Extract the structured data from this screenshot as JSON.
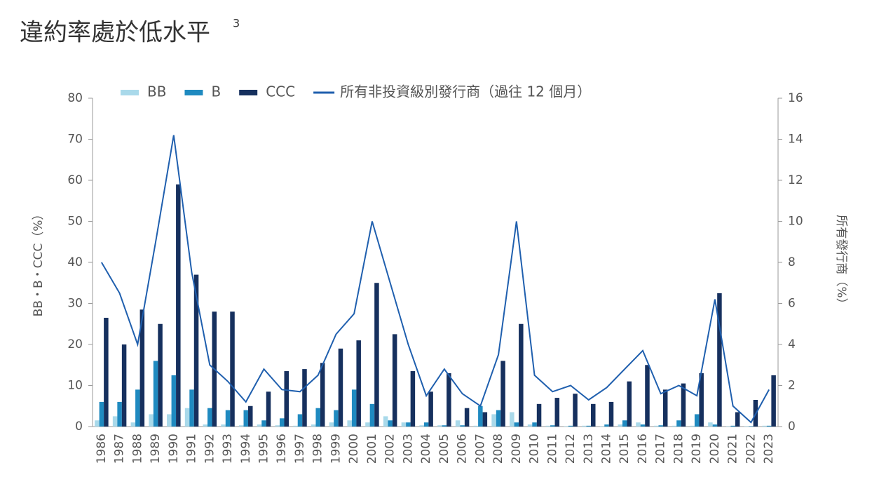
{
  "chart_data": {
    "type": "bar_line",
    "title": "違約率處於低水平",
    "title_superscript": "3",
    "y_label": "BB・B・CCC（%）",
    "y2_label": "所有發行商（%）",
    "categories": [
      "1986",
      "1987",
      "1988",
      "1989",
      "1990",
      "1991",
      "1992",
      "1993",
      "1994",
      "1995",
      "1996",
      "1997",
      "1998",
      "1999",
      "2000",
      "2001",
      "2002",
      "2003",
      "2004",
      "2005",
      "2006",
      "2007",
      "2008",
      "2009",
      "2010",
      "2011",
      "2012",
      "2013",
      "2014",
      "2015",
      "2016",
      "2017",
      "2018",
      "2019",
      "2020",
      "2021",
      "2022",
      "2023"
    ],
    "series": [
      {
        "name": "BB",
        "type": "bar",
        "color": "#a9d9ea",
        "values": [
          1.5,
          2.5,
          1,
          3,
          3,
          4.5,
          0.5,
          0.5,
          0.3,
          0.5,
          0.3,
          0.2,
          0.5,
          1,
          1.5,
          1,
          2.5,
          1,
          0.3,
          0.3,
          1.5,
          0.2,
          3,
          3.5,
          0.5,
          0.2,
          0.1,
          0.2,
          0.1,
          0.5,
          1,
          0.2,
          0.2,
          0.2,
          1,
          0.1,
          0.1,
          0.2
        ]
      },
      {
        "name": "B",
        "type": "bar",
        "color": "#1f8ac0",
        "values": [
          6,
          6,
          9,
          16,
          12.5,
          9,
          4.5,
          4,
          4,
          1.5,
          2,
          3,
          4.5,
          4,
          9,
          5.5,
          1.5,
          1,
          1,
          0.3,
          0.3,
          5,
          4,
          1,
          1,
          0.3,
          0.2,
          0.2,
          0.5,
          1.5,
          0.5,
          0.3,
          1.5,
          3,
          0.5,
          0.2,
          0.1,
          0.2
        ]
      },
      {
        "name": "CCC",
        "type": "bar",
        "color": "#16305e",
        "values": [
          26.5,
          20,
          28.5,
          25,
          59,
          37,
          28,
          28,
          5,
          8.5,
          13.5,
          14,
          15.5,
          19,
          21,
          35,
          22.5,
          13.5,
          8.5,
          13,
          4.5,
          3.5,
          16,
          25,
          5.5,
          7,
          8,
          5.5,
          6,
          11,
          15,
          9,
          10.5,
          13,
          32.5,
          3.5,
          6.5,
          12.5
        ]
      },
      {
        "name": "所有非投資級別發行商（過往 12 個月）",
        "type": "line",
        "axis": "y2",
        "color": "#1f5fae",
        "values": [
          8,
          6.5,
          4,
          9,
          14.2,
          7.5,
          3,
          2.2,
          1.2,
          2.8,
          1.8,
          1.7,
          2.5,
          4.5,
          5.5,
          10,
          7,
          4,
          1.5,
          2.8,
          1.6,
          1,
          3.5,
          10,
          2.5,
          1.7,
          2,
          1.3,
          1.9,
          2.8,
          3.7,
          1.6,
          2,
          1.5,
          6.2,
          1,
          0.2,
          1.8
        ]
      }
    ],
    "ylim": [
      0,
      80
    ],
    "yticks": [
      0,
      10,
      20,
      30,
      40,
      50,
      60,
      70,
      80
    ],
    "y2lim": [
      0,
      16
    ],
    "y2ticks": [
      0,
      2,
      4,
      6,
      8,
      10,
      12,
      14,
      16
    ]
  }
}
